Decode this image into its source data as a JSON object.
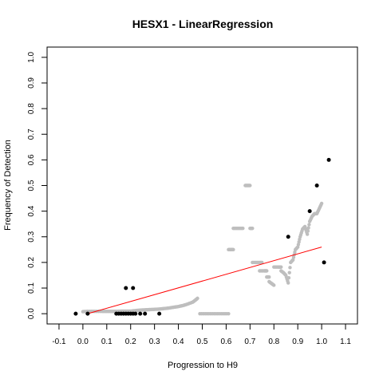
{
  "chart_data": {
    "type": "scatter",
    "title": "HESX1 - LinearRegression",
    "xlabel": "Progression to H9",
    "ylabel": "Frequency of Detection",
    "xlim": [
      -0.15,
      1.15
    ],
    "ylim": [
      -0.04,
      1.04
    ],
    "x_ticks": [
      "-0.1",
      "0.0",
      "0.1",
      "0.2",
      "0.3",
      "0.4",
      "0.5",
      "0.6",
      "0.7",
      "0.8",
      "0.9",
      "1.0",
      "1.1"
    ],
    "y_ticks": [
      "0.0",
      "0.1",
      "0.2",
      "0.3",
      "0.4",
      "0.5",
      "0.6",
      "0.7",
      "0.8",
      "0.9",
      "1.0"
    ],
    "grid": false,
    "colors": {
      "observed": "#000000",
      "smoothed": "#bebebe",
      "regression": "#ff0000"
    },
    "series": [
      {
        "kind": "points",
        "x": [
          -0.03,
          0.02,
          0.14,
          0.15,
          0.16,
          0.17,
          0.18,
          0.19,
          0.2,
          0.21,
          0.22,
          0.24,
          0.26,
          0.32,
          0.18,
          0.21,
          0.86,
          0.95,
          0.98,
          1.01,
          1.03
        ],
        "y": [
          0.0,
          0.0,
          0.0,
          0.0,
          0.0,
          0.0,
          0.0,
          0.0,
          0.0,
          0.0,
          0.0,
          0.0,
          0.0,
          0.0,
          0.1,
          0.1,
          0.3,
          0.4,
          0.5,
          0.2,
          0.6
        ]
      },
      {
        "kind": "smoothed",
        "segments": [
          {
            "x": [
              0.0,
              0.02,
              0.05,
              0.08,
              0.1,
              0.12,
              0.14,
              0.16,
              0.18,
              0.2,
              0.22,
              0.24,
              0.26,
              0.28,
              0.3,
              0.32,
              0.34,
              0.36,
              0.38,
              0.4,
              0.42,
              0.44,
              0.46,
              0.47,
              0.48
            ],
            "y": [
              0.008,
              0.009,
              0.009,
              0.009,
              0.009,
              0.009,
              0.009,
              0.01,
              0.01,
              0.01,
              0.012,
              0.014,
              0.015,
              0.016,
              0.017,
              0.018,
              0.02,
              0.022,
              0.025,
              0.028,
              0.032,
              0.038,
              0.045,
              0.052,
              0.06
            ]
          },
          {
            "x": [
              0.49,
              0.52,
              0.55,
              0.58,
              0.61
            ],
            "y": [
              0.0,
              0.0,
              0.0,
              0.0,
              0.0
            ]
          },
          {
            "x": [
              0.61,
              0.62,
              0.63
            ],
            "y": [
              0.25,
              0.25,
              0.25
            ]
          },
          {
            "x": [
              0.63,
              0.65,
              0.67
            ],
            "y": [
              0.333,
              0.333,
              0.333
            ]
          },
          {
            "x": [
              0.68,
              0.69,
              0.7
            ],
            "y": [
              0.5,
              0.5,
              0.5
            ]
          },
          {
            "x": [
              0.7,
              0.71
            ],
            "y": [
              0.333,
              0.333
            ]
          },
          {
            "x": [
              0.71,
              0.73,
              0.75
            ],
            "y": [
              0.2,
              0.2,
              0.2
            ]
          },
          {
            "x": [
              0.74,
              0.76,
              0.77
            ],
            "y": [
              0.167,
              0.167,
              0.167
            ]
          },
          {
            "x": [
              0.77,
              0.78
            ],
            "y": [
              0.143,
              0.143
            ]
          },
          {
            "x": [
              0.78,
              0.79,
              0.8
            ],
            "y": [
              0.125,
              0.118,
              0.111
            ]
          },
          {
            "x": [
              0.8,
              0.82,
              0.83
            ],
            "y": [
              0.182,
              0.182,
              0.182
            ]
          },
          {
            "x": [
              0.83,
              0.84,
              0.85,
              0.86,
              0.87,
              0.88,
              0.89,
              0.9,
              0.91,
              0.92,
              0.93,
              0.94,
              0.95,
              0.96,
              0.97,
              0.98,
              0.99,
              1.0
            ],
            "y": [
              0.167,
              0.16,
              0.15,
              0.12,
              0.2,
              0.21,
              0.25,
              0.26,
              0.3,
              0.33,
              0.34,
              0.31,
              0.36,
              0.38,
              0.39,
              0.39,
              0.41,
              0.43
            ]
          }
        ]
      },
      {
        "kind": "regression",
        "x": [
          0.02,
          1.0
        ],
        "y": [
          0.0,
          0.26
        ]
      }
    ]
  }
}
